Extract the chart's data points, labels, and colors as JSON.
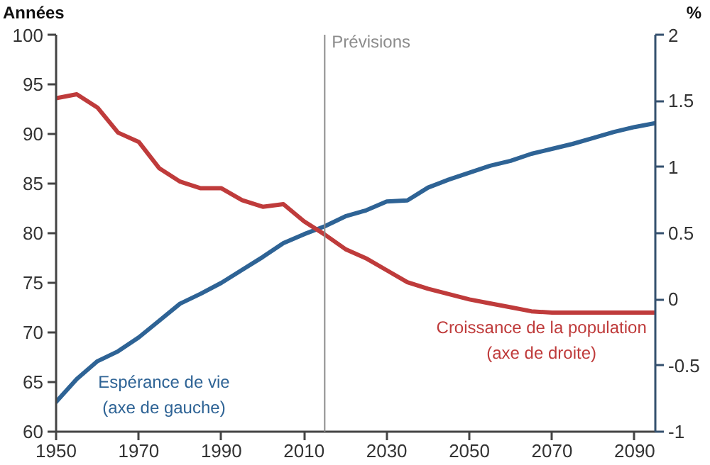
{
  "chart_data": {
    "type": "line",
    "ylabel": "Années",
    "y2label": "%",
    "x": [
      1950,
      1955,
      1960,
      1965,
      1970,
      1975,
      1980,
      1985,
      1990,
      1995,
      2000,
      2005,
      2010,
      2015,
      2020,
      2025,
      2030,
      2035,
      2040,
      2045,
      2050,
      2055,
      2060,
      2065,
      2070,
      2075,
      2080,
      2085,
      2090,
      2095
    ],
    "xlim": [
      1950,
      2095
    ],
    "xticks": [
      1950,
      1970,
      1990,
      2010,
      2030,
      2050,
      2070,
      2090
    ],
    "ylim": [
      60,
      100
    ],
    "yticks": [
      60,
      65,
      70,
      75,
      80,
      85,
      90,
      95,
      100
    ],
    "y2lim": [
      -1,
      2
    ],
    "y2ticks": [
      -1,
      -0.5,
      0,
      0.5,
      1,
      1.5,
      2
    ],
    "grid": false,
    "line_style": "solid",
    "marker": "none",
    "series": [
      {
        "name": "Espérance de vie (axe de gauche)",
        "color": "#2e6395",
        "values": [
          63.0,
          65.3,
          67.1,
          68.1,
          69.5,
          71.2,
          72.9,
          73.9,
          75.0,
          76.3,
          77.6,
          79.0,
          79.9,
          80.7,
          81.7,
          82.3,
          83.2,
          83.3,
          84.6,
          85.4,
          86.1,
          86.8,
          87.3,
          88.0,
          88.5,
          89.0,
          89.6,
          90.2,
          90.7,
          91.1
        ]
      },
      {
        "name": "Croissance de la population (axe de droite)",
        "color": "#bf3b3b",
        "axis": "y2",
        "values": [
          1.52,
          1.55,
          1.45,
          1.26,
          1.19,
          0.99,
          0.89,
          0.84,
          0.84,
          0.75,
          0.7,
          0.72,
          0.59,
          0.49,
          0.38,
          0.31,
          0.22,
          0.13,
          0.08,
          0.04,
          0.0,
          -0.03,
          -0.06,
          -0.09,
          -0.1,
          -0.1,
          -0.1,
          -0.1,
          -0.1,
          -0.1
        ]
      }
    ],
    "ref_lines": [
      {
        "axis": "x",
        "value": 2015,
        "label": "Prévisions",
        "color": "#8c8c8c"
      }
    ]
  }
}
